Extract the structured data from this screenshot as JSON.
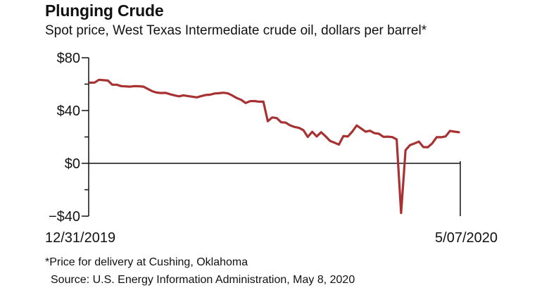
{
  "header": {
    "title": "Plunging Crude",
    "subtitle": "Spot price, West Texas Intermediate crude oil, dollars per barrel*"
  },
  "footer": {
    "footnote": "*Price for delivery at Cushing, Oklahoma",
    "source": "Source: U.S. Energy Information Administration, May 8, 2020"
  },
  "colors": {
    "line": "#a83232",
    "axis": "#111111"
  },
  "chart_data": {
    "type": "line",
    "title": "Plunging Crude",
    "subtitle": "Spot price, West Texas Intermediate crude oil, dollars per barrel*",
    "xlabel": "",
    "ylabel": "",
    "ylim": [
      -40,
      80
    ],
    "yticks": [
      {
        "value": 80,
        "label": "$80"
      },
      {
        "value": 40,
        "label": "$40"
      },
      {
        "value": 0,
        "label": "$0"
      },
      {
        "value": -40,
        "label": "−$40"
      }
    ],
    "xtick_labels": [
      "12/31/2019",
      "5/07/2020"
    ],
    "grid": false,
    "series": [
      {
        "values": [
          61.1,
          61.2,
          63.3,
          63.0,
          62.7,
          59.6,
          59.6,
          58.5,
          58.3,
          58.1,
          58.5,
          58.4,
          58.1,
          56.4,
          54.6,
          53.6,
          53.3,
          53.4,
          52.4,
          51.5,
          50.8,
          51.5,
          51.0,
          50.5,
          50.0,
          50.9,
          51.8,
          52.0,
          52.9,
          53.1,
          53.5,
          53.0,
          51.4,
          49.5,
          48.1,
          45.7,
          47.1,
          47.2,
          46.7,
          46.8,
          31.9,
          34.8,
          34.3,
          31.1,
          30.9,
          28.8,
          27.6,
          26.9,
          25.2,
          20.0,
          23.9,
          20.4,
          23.6,
          20.5,
          17.0,
          15.7,
          14.2,
          20.7,
          20.3,
          24.0,
          28.7,
          26.4,
          24.0,
          24.7,
          22.9,
          22.4,
          20.1,
          20.2,
          19.9,
          18.2,
          -37.6,
          10.0,
          13.8,
          15.1,
          16.5,
          12.3,
          12.2,
          15.1,
          19.8,
          19.8,
          20.4,
          24.6,
          24.0,
          23.6
        ]
      }
    ]
  }
}
